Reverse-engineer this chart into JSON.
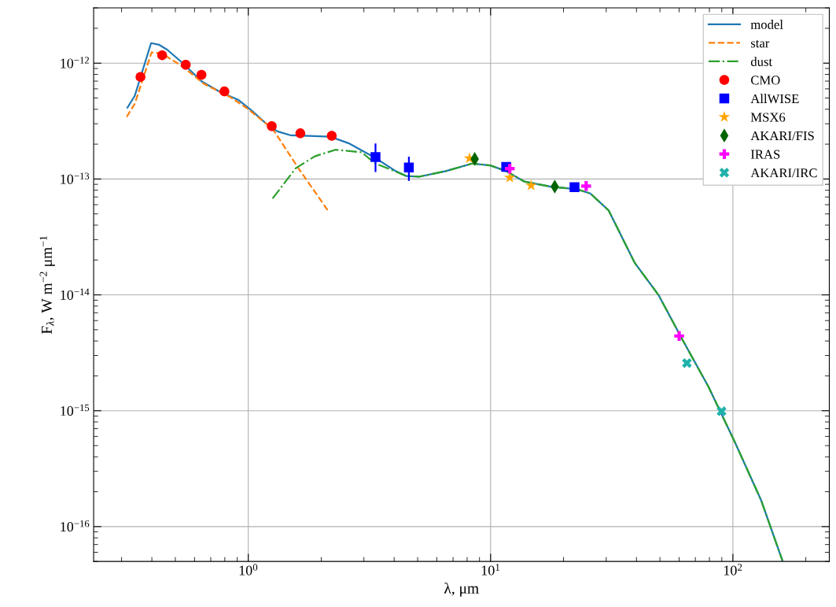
{
  "chart_data": {
    "type": "line",
    "xlabel": "λ, μm",
    "ylabel": "F$_{λ}$, W m$^{−2}$ μm$^{−1}$",
    "log": "xy",
    "grid": true,
    "legend": "top right",
    "xlim": [
      0.23,
      250
    ],
    "ylim": [
      5e-17,
      3e-12
    ],
    "xticks": [
      {
        "value": 1,
        "label": "10$^{0}$"
      },
      {
        "value": 10,
        "label": "10$^{1}$"
      },
      {
        "value": 100,
        "label": "10$^{2}$"
      }
    ],
    "yticks": [
      {
        "value": 1e-16,
        "label": "10$^{−16}$"
      },
      {
        "value": 1e-15,
        "label": "10$^{−15}$"
      },
      {
        "value": 1e-14,
        "label": "10$^{−14}$"
      },
      {
        "value": 1e-13,
        "label": "10$^{−13}$"
      },
      {
        "value": 1e-12,
        "label": "10$^{−12}$"
      }
    ],
    "series": [
      {
        "name": "model",
        "color": "#1f77b4",
        "line_style": "solid",
        "marker": "none",
        "x": [
          0.317,
          0.34,
          0.397,
          0.429,
          0.462,
          0.537,
          0.641,
          0.764,
          0.908,
          1.03,
          1.2,
          1.32,
          1.5,
          1.78,
          2.18,
          2.59,
          3.33,
          4.06,
          4.5,
          5.1,
          6.53,
          8.39,
          9.98,
          11.6,
          13.8,
          17.7,
          22.8,
          25.8,
          30.7,
          39.4,
          49.3,
          61.8,
          79.3,
          101.7,
          130.6,
          160
        ],
        "values": [
          4.13e-13,
          5.22e-13,
          1.49e-12,
          1.44e-12,
          1.31e-12,
          1e-12,
          6.97e-13,
          5.65e-13,
          4.83e-13,
          3.92e-13,
          2.94e-13,
          2.58e-13,
          2.38e-13,
          2.36e-13,
          2.32e-13,
          2.04e-13,
          1.53e-13,
          1.17e-13,
          1.06e-13,
          1.05e-13,
          1.17e-13,
          1.36e-13,
          1.31e-13,
          1.17e-13,
          9.5e-14,
          8.6e-14,
          8.15e-14,
          7.5e-14,
          5.36e-14,
          1.88e-14,
          1e-14,
          4.13e-15,
          1.61e-15,
          5.4e-16,
          1.7e-16,
          5.1e-17
        ]
      },
      {
        "name": "star",
        "color": "#ff7f0e",
        "line_style": "dashed",
        "marker": "none",
        "x": [
          0.315,
          0.34,
          0.399,
          0.441,
          0.538,
          0.658,
          0.844,
          0.98,
          1.26,
          1.61,
          2.13
        ],
        "values": [
          3.44e-13,
          4.46e-13,
          1.24e-12,
          1.21e-12,
          9.29e-13,
          6.61e-13,
          5.09e-13,
          4.13e-13,
          2.72e-13,
          1.24e-13,
          5.36e-14
        ]
      },
      {
        "name": "dust",
        "color": "#2ca02c",
        "line_style": "dashdot",
        "marker": "none",
        "x": [
          1.26,
          1.57,
          1.88,
          2.29,
          2.94,
          3.33,
          4.5,
          5.1,
          6.53,
          8.39,
          9.98,
          11.6,
          13.8,
          17.7,
          22.8,
          25.8,
          30.7,
          39.4,
          49.3,
          61.8,
          79.3,
          101.7,
          130.6,
          160
        ],
        "values": [
          6.79e-14,
          1.24e-13,
          1.57e-13,
          1.79e-13,
          1.7e-13,
          1.37e-13,
          1.06e-13,
          1.05e-13,
          1.17e-13,
          1.36e-13,
          1.31e-13,
          1.17e-13,
          9.5e-14,
          8.6e-14,
          8.15e-14,
          7.5e-14,
          5.36e-14,
          1.88e-14,
          1e-14,
          4.13e-15,
          1.61e-15,
          5.4e-16,
          1.7e-16,
          5.1e-17
        ]
      },
      {
        "name": "CMO",
        "type": "scatter",
        "color": "#ff0000",
        "marker": "circle",
        "x": [
          0.359,
          0.441,
          0.552,
          0.641,
          0.797,
          1.25,
          1.64,
          2.21
        ],
        "values": [
          7.61e-13,
          1.17e-12,
          9.69e-13,
          7.94e-13,
          5.71e-13,
          2.86e-13,
          2.48e-13,
          2.36e-13
        ]
      },
      {
        "name": "AllWISE",
        "type": "scatter",
        "color": "#0000ff",
        "marker": "square",
        "x": [
          3.35,
          4.6,
          11.6,
          22.2
        ],
        "values": [
          1.55e-13,
          1.26e-13,
          1.27e-13,
          8.5e-14
        ],
        "errors": [
          [
            1.17e-13,
            1.99e-13
          ],
          [
            9.8e-14,
            1.53e-13
          ],
          null,
          null
        ]
      },
      {
        "name": "MSX6",
        "type": "scatter",
        "color": "#ffa500",
        "marker": "star",
        "x": [
          8.18,
          12.0,
          14.7
        ],
        "values": [
          1.51e-13,
          1.03e-13,
          8.8e-14
        ]
      },
      {
        "name": "AKARI/FIS",
        "type": "scatter",
        "color": "#006400",
        "marker": "diamond",
        "x": [
          8.6,
          18.4
        ],
        "values": [
          1.49e-13,
          8.6e-14
        ]
      },
      {
        "name": "IRAS",
        "type": "scatter",
        "color": "#ff00ff",
        "marker": "plus",
        "x": [
          12.0,
          24.8,
          60.0
        ],
        "values": [
          1.23e-13,
          8.7e-14,
          4.42e-15
        ]
      },
      {
        "name": "AKARI/IRC",
        "type": "scatter",
        "color": "#20b2aa",
        "marker": "cross",
        "x": [
          64.6,
          89.8
        ],
        "values": [
          2.58e-15,
          9.9e-16
        ]
      }
    ]
  }
}
